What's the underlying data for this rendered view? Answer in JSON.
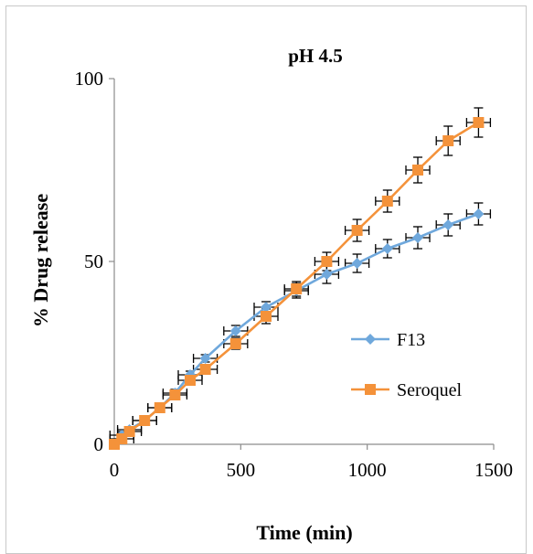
{
  "chart_data": {
    "type": "line",
    "title": "pH 4.5",
    "xlabel": "Time (min)",
    "ylabel": "% Drug release",
    "xlim": [
      0,
      1500
    ],
    "ylim": [
      0,
      100
    ],
    "x_ticks": [
      0,
      500,
      1000,
      1500
    ],
    "y_ticks": [
      0,
      50,
      100
    ],
    "grid": false,
    "legend_position": "right-middle",
    "series": [
      {
        "name": "F13",
        "color": "#6fa8dc",
        "marker": "diamond",
        "x": [
          0,
          30,
          60,
          120,
          180,
          240,
          300,
          360,
          480,
          600,
          720,
          840,
          960,
          1080,
          1200,
          1320,
          1440
        ],
        "y": [
          0,
          2.5,
          4,
          6.5,
          10,
          14,
          19,
          23.5,
          31,
          37.5,
          42,
          46.5,
          49.5,
          53.5,
          56.5,
          60,
          63
        ],
        "error": [
          0,
          0.5,
          0.5,
          0.8,
          1,
          1,
          1,
          1,
          1.5,
          1.5,
          2,
          2.5,
          2.5,
          2.5,
          3,
          3,
          3
        ]
      },
      {
        "name": "Seroquel",
        "color": "#f4923a",
        "marker": "square",
        "x": [
          0,
          30,
          60,
          120,
          180,
          240,
          300,
          360,
          480,
          600,
          720,
          840,
          960,
          1080,
          1200,
          1320,
          1440
        ],
        "y": [
          0,
          1.5,
          3.5,
          6.5,
          10,
          13.5,
          17.5,
          20.5,
          27.5,
          35,
          42.5,
          50,
          58.5,
          66.5,
          75,
          83,
          88
        ],
        "error": [
          0,
          0.5,
          0.5,
          0.8,
          1,
          1,
          1,
          1,
          1.5,
          2,
          2,
          2.5,
          3,
          3,
          3.5,
          4,
          4
        ]
      }
    ]
  }
}
